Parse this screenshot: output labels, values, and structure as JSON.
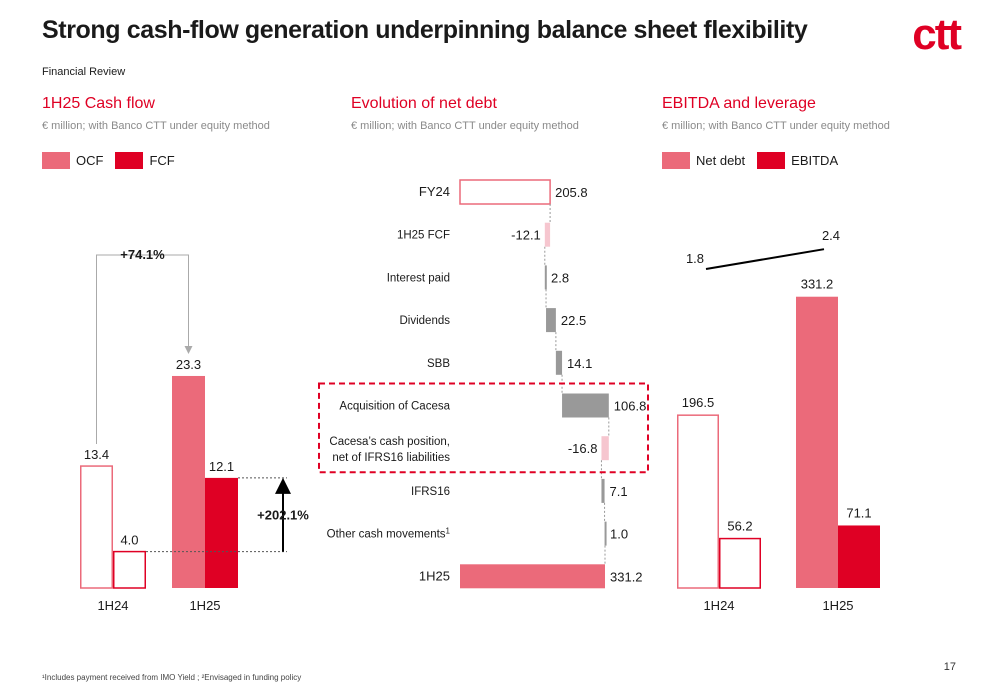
{
  "page": {
    "title": "Strong cash-flow generation underpinning balance sheet flexibility",
    "subtitle": "Financial Review",
    "logo": "ctt",
    "footnote": "¹Includes payment received from IMO Yield ; ²Envisaged in funding policy",
    "page_number": "17"
  },
  "colors": {
    "accent": "#df0024",
    "pink": "#eb6a7a",
    "light_pink": "#f6c6cf",
    "grey": "#999999"
  },
  "chart_data": [
    {
      "type": "bar",
      "title": "1H25 Cash flow",
      "subtitle": "€ million; with Banco CTT under equity method",
      "legend": [
        "OCF",
        "FCF"
      ],
      "categories": [
        "1H24",
        "1H25"
      ],
      "series": [
        {
          "name": "OCF",
          "values": [
            13.4,
            23.3
          ],
          "labels": [
            "13.4",
            "23.3"
          ]
        },
        {
          "name": "FCF",
          "values": [
            4.0,
            12.1
          ],
          "labels": [
            "4.0",
            "12.1"
          ]
        }
      ],
      "annotations": {
        "ocf_growth": "+74.1%",
        "fcf_growth": "+202.1%"
      },
      "ylim": [
        0,
        25
      ]
    },
    {
      "type": "waterfall",
      "title": "Evolution of net debt",
      "subtitle": "€ million; with Banco CTT under equity method",
      "items": [
        {
          "label": "FY24",
          "value": 205.8,
          "display": "205.8",
          "kind": "total"
        },
        {
          "label": "1H25 FCF",
          "value": -12.1,
          "display": "-12.1",
          "kind": "decrease"
        },
        {
          "label": "Interest paid",
          "value": 2.8,
          "display": "2.8",
          "kind": "increase"
        },
        {
          "label": "Dividends",
          "value": 22.5,
          "display": "22.5",
          "kind": "increase"
        },
        {
          "label": "SBB",
          "value": 14.1,
          "display": "14.1",
          "kind": "increase"
        },
        {
          "label": "Acquisition of Cacesa",
          "value": 106.8,
          "display": "106.8",
          "kind": "increase"
        },
        {
          "label": "Cacesa’s cash position,|net of IFRS16 liabilities",
          "value": -16.8,
          "display": "-16.8",
          "kind": "decrease"
        },
        {
          "label": "IFRS16",
          "value": 7.1,
          "display": "7.1",
          "kind": "increase"
        },
        {
          "label": "Other cash movements",
          "label_sup": "1",
          "value": 1.0,
          "display": "1.0",
          "kind": "increase"
        },
        {
          "label": "1H25",
          "value": 331.2,
          "display": "331.2",
          "kind": "total"
        }
      ],
      "highlight": [
        "Acquisition of Cacesa",
        "Cacesa’s cash position,|net of IFRS16 liabilities"
      ],
      "xlim": [
        0,
        340
      ]
    },
    {
      "type": "bar",
      "title": "EBITDA and leverage",
      "subtitle": "€ million; with Banco CTT under equity method",
      "legend": [
        "Net debt",
        "EBITDA"
      ],
      "categories": [
        "1H24",
        "1H25"
      ],
      "series": [
        {
          "name": "Net debt",
          "values": [
            196.5,
            331.2
          ],
          "labels": [
            "196.5",
            "331.2"
          ]
        },
        {
          "name": "EBITDA",
          "values": [
            56.2,
            71.1
          ],
          "labels": [
            "56.2",
            "71.1"
          ]
        }
      ],
      "leverage": {
        "values": [
          1.8,
          2.4
        ],
        "labels": [
          "1.8",
          "2.4"
        ]
      },
      "ylim": [
        0,
        350
      ]
    }
  ]
}
